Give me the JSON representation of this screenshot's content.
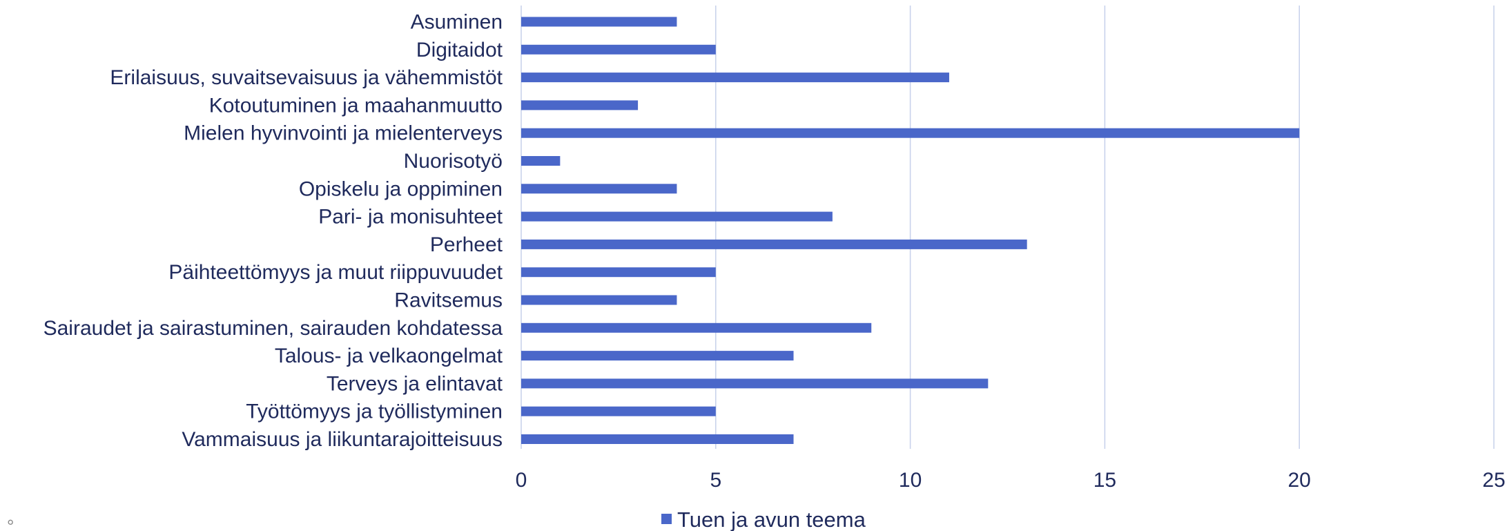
{
  "chart_data": {
    "type": "bar",
    "orientation": "horizontal",
    "categories": [
      "Asuminen",
      "Digitaidot",
      "Erilaisuus, suvaitsevaisuus ja vähemmistöt",
      "Kotoutuminen ja maahanmuutto",
      "Mielen hyvinvointi ja mielenterveys",
      "Nuorisotyö",
      "Opiskelu ja oppiminen",
      "Pari- ja monisuhteet",
      "Perheet",
      "Päihteettömyys ja muut riippuvuudet",
      "Ravitsemus",
      "Sairaudet ja sairastuminen, sairauden kohdatessa",
      "Talous- ja velkaongelmat",
      "Terveys ja elintavat",
      "Työttömyys ja työllistyminen",
      "Vammaisuus ja liikuntarajoitteisuus"
    ],
    "series": [
      {
        "name": "Tuen ja avun teema",
        "values": [
          4,
          5,
          11,
          3,
          20,
          1,
          4,
          8,
          13,
          5,
          4,
          9,
          7,
          12,
          5,
          7
        ]
      }
    ],
    "xlim": [
      0,
      25
    ],
    "ticks": [
      "0",
      "5",
      "10",
      "15",
      "20",
      "25"
    ],
    "grid": true,
    "legend_position": "bottom",
    "colors": {
      "bar": "#4a67c9",
      "grid": "#c6d0ea",
      "text": "#1f2a5c"
    }
  },
  "footnote_mark": "°"
}
